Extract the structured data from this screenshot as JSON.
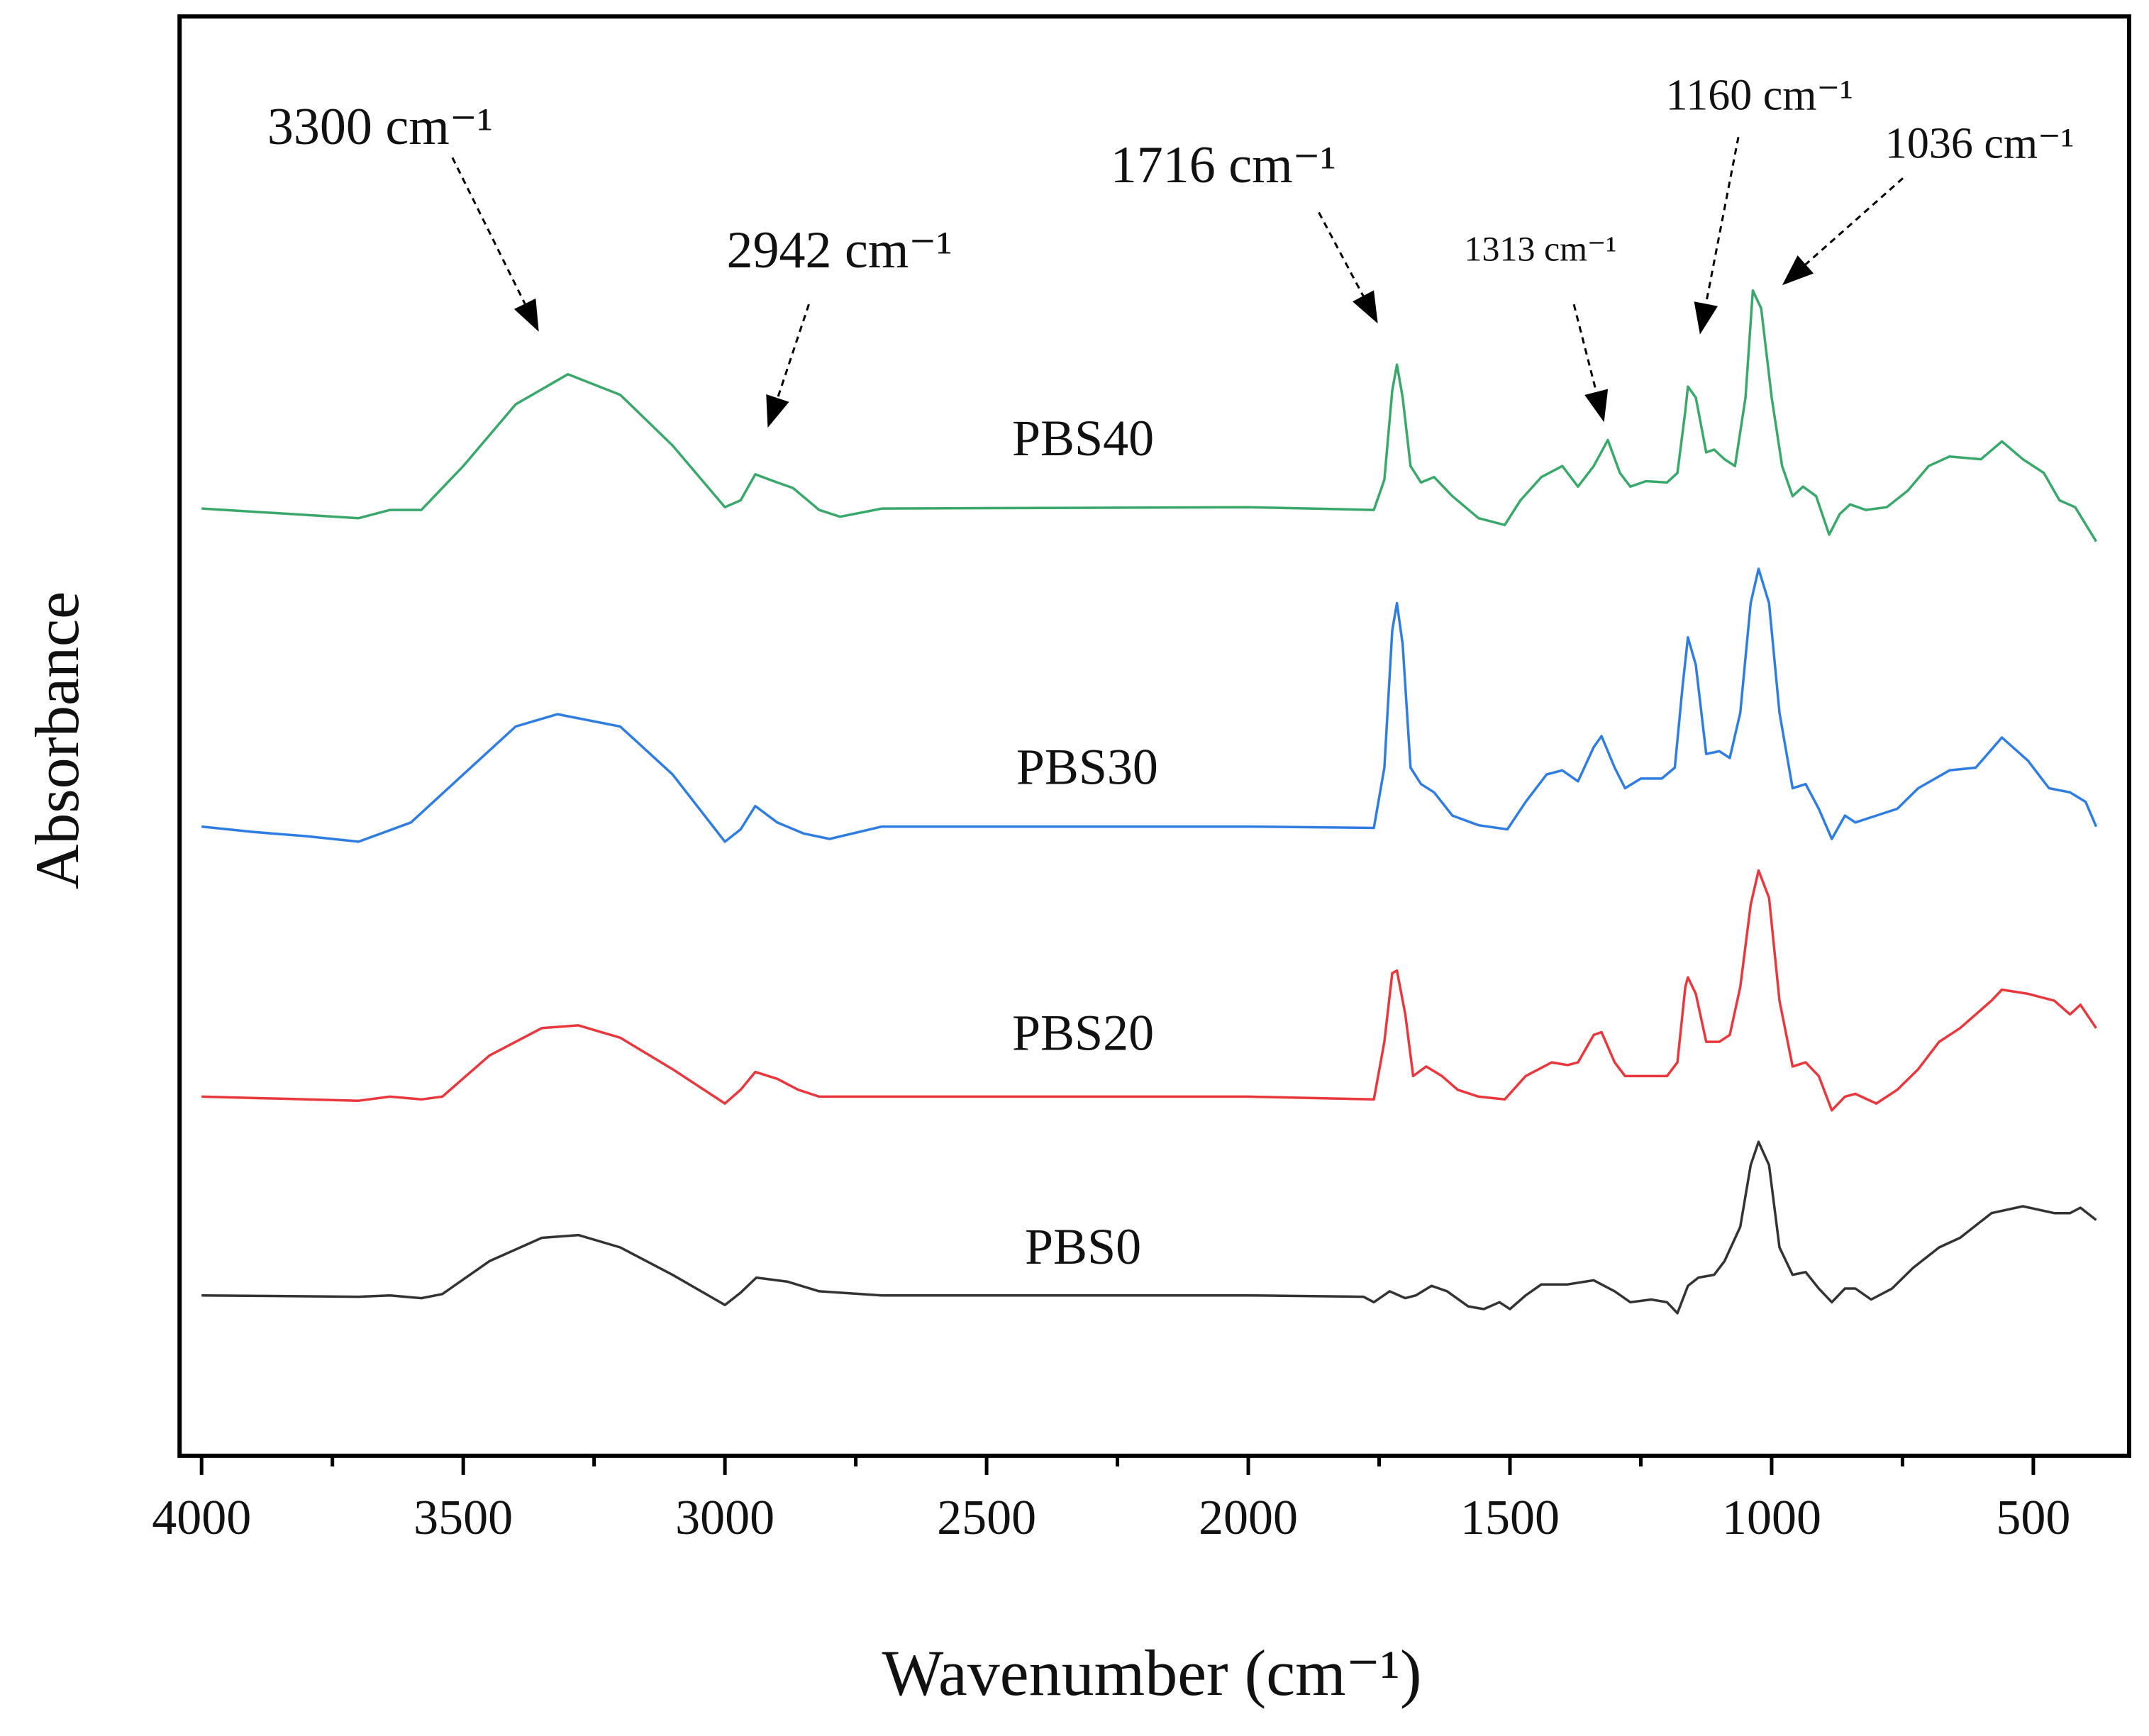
{
  "chart_data": {
    "type": "line",
    "xlabel": "Wavenumber (cm⁻¹)",
    "ylabel": "Absorbance",
    "xlim": [
      4042,
      317
    ],
    "ylim": [
      0,
      1050
    ],
    "xticks": [
      4000,
      3500,
      3000,
      2500,
      2000,
      1500,
      1000,
      500
    ],
    "xminorticks": [
      3750,
      3250,
      2750,
      2250,
      1750,
      1250,
      750
    ],
    "annotations": [
      {
        "text": "3300 cm⁻¹"
      },
      {
        "text": "2942 cm⁻¹"
      },
      {
        "text": "1716 cm⁻¹"
      },
      {
        "text": "1313 cm⁻¹"
      },
      {
        "text": "1160 cm⁻¹"
      },
      {
        "text": "1036 cm⁻¹"
      }
    ],
    "series": [
      {
        "name": "PBS40",
        "color": "#3aa86b",
        "x": [
          4000,
          3700,
          3640,
          3580,
          3500,
          3400,
          3300,
          3200,
          3100,
          3000,
          2970,
          2942,
          2900,
          2870,
          2820,
          2780,
          2700,
          2000,
          1760,
          1740,
          1725,
          1716,
          1705,
          1690,
          1670,
          1645,
          1610,
          1560,
          1510,
          1480,
          1440,
          1400,
          1370,
          1340,
          1313,
          1290,
          1270,
          1240,
          1200,
          1180,
          1165,
          1160,
          1145,
          1125,
          1110,
          1090,
          1070,
          1050,
          1036,
          1020,
          1000,
          980,
          960,
          940,
          915,
          890,
          870,
          850,
          820,
          780,
          740,
          700,
          660,
          600,
          560,
          520,
          480,
          450,
          420,
          380
        ],
        "values": [
          691,
          684,
          690,
          690,
          722,
          767,
          789,
          774,
          737,
          692,
          697,
          716,
          710,
          706,
          690,
          685,
          691,
          692,
          690,
          712,
          777,
          796,
          772,
          722,
          710,
          714,
          700,
          684,
          679,
          697,
          714,
          722,
          707,
          722,
          741,
          717,
          707,
          711,
          710,
          717,
          762,
          780,
          772,
          732,
          734,
          727,
          722,
          772,
          850,
          837,
          772,
          722,
          700,
          707,
          700,
          672,
          687,
          694,
          690,
          692,
          704,
          722,
          729,
          727,
          740,
          727,
          717,
          697,
          692,
          667
        ]
      },
      {
        "name": "PBS30",
        "color": "#2f7de0",
        "x": [
          4000,
          3900,
          3800,
          3700,
          3600,
          3500,
          3400,
          3320,
          3200,
          3100,
          3000,
          2970,
          2942,
          2900,
          2850,
          2800,
          2700,
          2000,
          1760,
          1740,
          1725,
          1716,
          1705,
          1690,
          1670,
          1645,
          1610,
          1560,
          1505,
          1470,
          1430,
          1400,
          1370,
          1340,
          1325,
          1300,
          1280,
          1250,
          1210,
          1185,
          1170,
          1160,
          1145,
          1125,
          1100,
          1080,
          1060,
          1040,
          1025,
          1005,
          985,
          960,
          935,
          910,
          885,
          860,
          840,
          800,
          760,
          720,
          660,
          610,
          560,
          510,
          470,
          430,
          400,
          380
        ],
        "values": [
          459,
          455,
          452,
          448,
          462,
          497,
          532,
          541,
          532,
          497,
          448,
          457,
          474,
          462,
          454,
          450,
          459,
          459,
          458,
          502,
          602,
          622,
          592,
          502,
          490,
          484,
          467,
          460,
          457,
          477,
          497,
          500,
          492,
          517,
          525,
          502,
          487,
          494,
          494,
          502,
          562,
          597,
          577,
          512,
          514,
          509,
          542,
          622,
          647,
          622,
          542,
          487,
          490,
          472,
          450,
          467,
          462,
          467,
          472,
          487,
          500,
          502,
          524,
          507,
          487,
          484,
          477,
          459
        ]
      },
      {
        "name": "PBS20",
        "color": "#e8383d",
        "x": [
          4000,
          3700,
          3640,
          3580,
          3540,
          3450,
          3350,
          3280,
          3200,
          3100,
          3000,
          2970,
          2942,
          2900,
          2860,
          2820,
          2700,
          2000,
          1760,
          1740,
          1725,
          1716,
          1700,
          1685,
          1660,
          1630,
          1600,
          1560,
          1510,
          1470,
          1420,
          1390,
          1370,
          1340,
          1325,
          1300,
          1280,
          1250,
          1200,
          1180,
          1165,
          1160,
          1145,
          1125,
          1100,
          1080,
          1060,
          1040,
          1025,
          1005,
          985,
          960,
          935,
          910,
          885,
          860,
          840,
          800,
          760,
          720,
          680,
          640,
          580,
          560,
          510,
          460,
          430,
          410,
          380
        ],
        "values": [
          262,
          259,
          262,
          260,
          262,
          292,
          312,
          314,
          305,
          282,
          257,
          267,
          280,
          275,
          267,
          262,
          262,
          262,
          260,
          302,
          352,
          354,
          322,
          277,
          284,
          277,
          267,
          262,
          260,
          277,
          287,
          285,
          287,
          307,
          309,
          287,
          277,
          277,
          277,
          287,
          342,
          349,
          337,
          302,
          302,
          307,
          342,
          402,
          427,
          407,
          332,
          284,
          287,
          277,
          252,
          262,
          264,
          257,
          267,
          282,
          302,
          312,
          332,
          340,
          337,
          332,
          322,
          329,
          312
        ]
      },
      {
        "name": "PBS0",
        "color": "#333333",
        "x": [
          4000,
          3700,
          3640,
          3580,
          3540,
          3450,
          3350,
          3280,
          3200,
          3100,
          3000,
          2970,
          2940,
          2880,
          2820,
          2700,
          2000,
          1780,
          1760,
          1730,
          1700,
          1680,
          1650,
          1620,
          1580,
          1550,
          1520,
          1500,
          1470,
          1440,
          1390,
          1340,
          1300,
          1270,
          1230,
          1200,
          1180,
          1160,
          1140,
          1110,
          1090,
          1060,
          1040,
          1025,
          1005,
          985,
          960,
          935,
          910,
          885,
          860,
          840,
          810,
          770,
          730,
          680,
          640,
          580,
          520,
          460,
          430,
          410,
          380
        ],
        "values": [
          117,
          116,
          117,
          115,
          118,
          142,
          159,
          161,
          152,
          132,
          110,
          119,
          130,
          127,
          120,
          117,
          117,
          116,
          112,
          120,
          115,
          117,
          124,
          120,
          109,
          107,
          112,
          107,
          117,
          125,
          125,
          128,
          120,
          112,
          114,
          112,
          104,
          124,
          130,
          132,
          142,
          167,
          212,
          229,
          212,
          152,
          132,
          134,
          122,
          112,
          122,
          122,
          114,
          122,
          137,
          152,
          159,
          177,
          182,
          177,
          177,
          181,
          172
        ]
      }
    ]
  }
}
